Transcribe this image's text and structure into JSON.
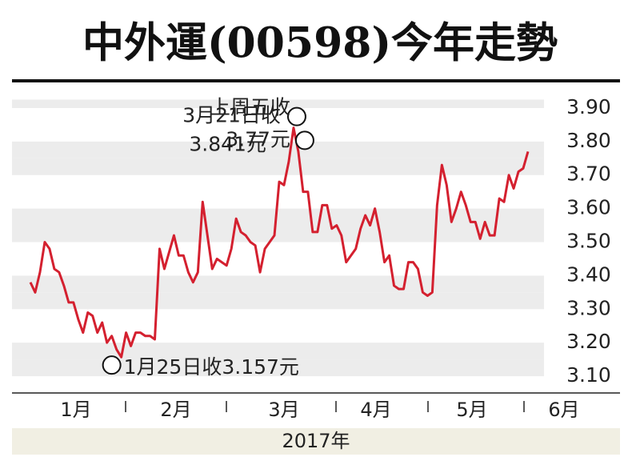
{
  "chart_data": {
    "type": "line",
    "title": "中外運(00598)今年走勢",
    "x_labels": [
      "1月",
      "2月",
      "3月",
      "4月",
      "5月",
      "6月"
    ],
    "xlabel": "2017年",
    "series": [
      {
        "name": "中外運",
        "color": "#d4202f",
        "values": [
          3.38,
          3.35,
          3.41,
          3.5,
          3.48,
          3.42,
          3.41,
          3.37,
          3.32,
          3.32,
          3.27,
          3.23,
          3.29,
          3.28,
          3.23,
          3.26,
          3.2,
          3.22,
          3.18,
          3.157,
          3.23,
          3.19,
          3.23,
          3.23,
          3.22,
          3.22,
          3.21,
          3.48,
          3.42,
          3.47,
          3.52,
          3.46,
          3.46,
          3.41,
          3.38,
          3.41,
          3.62,
          3.52,
          3.42,
          3.45,
          3.44,
          3.43,
          3.48,
          3.57,
          3.53,
          3.52,
          3.5,
          3.49,
          3.41,
          3.48,
          3.5,
          3.52,
          3.68,
          3.67,
          3.74,
          3.841,
          3.77,
          3.65,
          3.65,
          3.53,
          3.53,
          3.61,
          3.61,
          3.54,
          3.55,
          3.52,
          3.44,
          3.46,
          3.48,
          3.54,
          3.58,
          3.55,
          3.6,
          3.53,
          3.44,
          3.46,
          3.37,
          3.36,
          3.36,
          3.44,
          3.44,
          3.42,
          3.35,
          3.34,
          3.35,
          3.61,
          3.73,
          3.67,
          3.56,
          3.6,
          3.65,
          3.61,
          3.56,
          3.56,
          3.51,
          3.56,
          3.52,
          3.52,
          3.63,
          3.62,
          3.7,
          3.66,
          3.71,
          3.72,
          3.77
        ]
      }
    ],
    "ylim": [
      3.05,
      3.95
    ],
    "yticks": [
      {
        "value": 3.1,
        "label": "3.10"
      },
      {
        "value": 3.2,
        "label": "3.20"
      },
      {
        "value": 3.3,
        "label": "3.30"
      },
      {
        "value": 3.4,
        "label": "3.40"
      },
      {
        "value": 3.5,
        "label": "3.50"
      },
      {
        "value": 3.6,
        "label": "3.60"
      },
      {
        "value": 3.7,
        "label": "3.70"
      },
      {
        "value": 3.8,
        "label": "3.80"
      },
      {
        "value": 3.9,
        "label": "3.90"
      }
    ],
    "annotations": [
      {
        "lines": [
          "3月21日收",
          "3.841元"
        ],
        "value": 3.841
      },
      {
        "lines": [
          "1月25日收3.157元"
        ],
        "value": 3.157
      },
      {
        "lines": [
          "上周五收",
          "3.77元"
        ],
        "value": 3.77
      }
    ]
  }
}
